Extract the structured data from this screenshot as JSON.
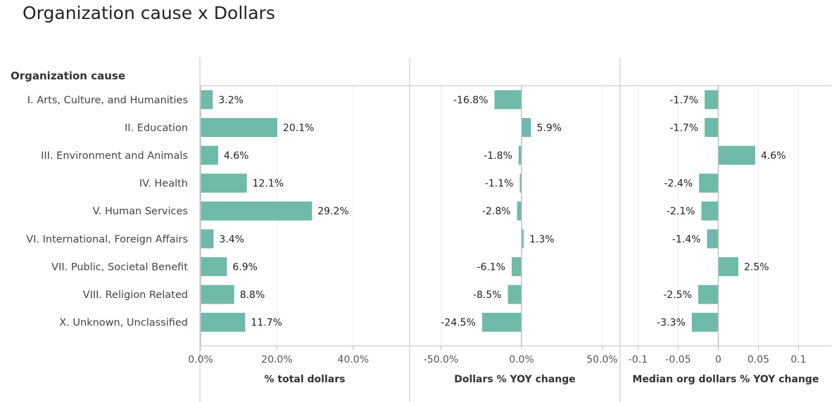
{
  "title": "Organization cause x Dollars",
  "chart_data": {
    "type": "bar",
    "orientation": "horizontal",
    "title": "Organization cause x Dollars",
    "row_header": "Organization cause",
    "bar_color": "#6fbaa9",
    "categories": [
      "I. Arts, Culture, and Humanities",
      "II. Education",
      "III. Environment and Animals",
      "IV. Health",
      "V. Human Services",
      "VI. International, Foreign Affairs",
      "VII. Public, Societal Benefit",
      "VIII. Religion Related",
      "X. Unknown, Unclassified"
    ],
    "panels": [
      {
        "xlabel": "% total dollars",
        "values": [
          3.2,
          20.1,
          4.6,
          12.1,
          29.2,
          3.4,
          6.9,
          8.8,
          11.7
        ],
        "labels": [
          "3.2%",
          "20.1%",
          "4.6%",
          "12.1%",
          "29.2%",
          "3.4%",
          "6.9%",
          "8.8%",
          "11.7%"
        ],
        "xlim": [
          0,
          50
        ],
        "ticks": [
          0,
          20,
          40
        ],
        "tick_labels": [
          "0.0%",
          "20.0%",
          "40.0%"
        ]
      },
      {
        "xlabel": "Dollars % YOY change",
        "values": [
          -16.8,
          5.9,
          -1.8,
          -1.1,
          -2.8,
          1.3,
          -6.1,
          -8.5,
          -24.5
        ],
        "labels": [
          "-16.8%",
          "5.9%",
          "-1.8%",
          "-1.1%",
          "-2.8%",
          "1.3%",
          "-6.1%",
          "-8.5%",
          "-24.5%"
        ],
        "xlim": [
          -58,
          58
        ],
        "ticks": [
          -50,
          0,
          50
        ],
        "tick_labels": [
          "-50.0%",
          "0.0%",
          "50.0%"
        ]
      },
      {
        "xlabel": "Median org dollars % YOY change",
        "values": [
          -1.7,
          -1.7,
          4.6,
          -2.4,
          -2.1,
          -1.4,
          2.5,
          -2.5,
          -3.3
        ],
        "labels": [
          "-1.7%",
          "-1.7%",
          "4.6%",
          "-2.4%",
          "-2.1%",
          "-1.4%",
          "2.5%",
          "-2.5%",
          "-3.3%"
        ],
        "xlim": [
          -13,
          13
        ],
        "ticks": [
          -10,
          -5,
          0,
          5,
          10
        ],
        "tick_labels": [
          "-0.1",
          "-0.05",
          "0",
          "0.05",
          "0.1"
        ]
      }
    ]
  }
}
